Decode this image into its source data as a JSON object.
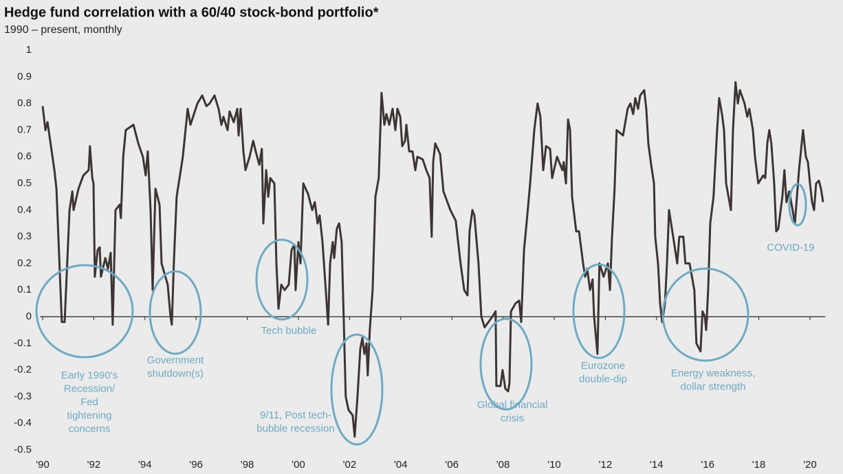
{
  "chart_data": {
    "type": "line",
    "title": "Hedge fund correlation with a 60/40 stock-bond portfolio*",
    "subtitle": "1990 – present, monthly",
    "color": "#3d3533",
    "annotation_color": "#6fa9c2",
    "xlim": [
      1989.9,
      2020.6
    ],
    "ylim": [
      -0.5,
      1
    ],
    "yticks": [
      1,
      0.9,
      0.8,
      0.7,
      0.6,
      0.5,
      0.4,
      0.3,
      0.2,
      0.1,
      0,
      -0.1,
      -0.2,
      -0.3,
      -0.4,
      -0.5
    ],
    "xticks": [
      {
        "value": 1990,
        "label": "'90"
      },
      {
        "value": 1992,
        "label": "'92"
      },
      {
        "value": 1994,
        "label": "'94"
      },
      {
        "value": 1996,
        "label": "'96"
      },
      {
        "value": 1998,
        "label": "'98"
      },
      {
        "value": 2000,
        "label": "'00"
      },
      {
        "value": 2002,
        "label": "'02"
      },
      {
        "value": 2004,
        "label": "'04"
      },
      {
        "value": 2006,
        "label": "'06"
      },
      {
        "value": 2008,
        "label": "'08"
      },
      {
        "value": 2010,
        "label": "'10"
      },
      {
        "value": 2012,
        "label": "'12"
      },
      {
        "value": 2014,
        "label": "'14"
      },
      {
        "value": 2016,
        "label": "'16"
      },
      {
        "value": 2018,
        "label": "'18"
      },
      {
        "value": 2020,
        "label": "'20"
      }
    ],
    "x": [
      1990.0,
      1990.11,
      1990.19,
      1990.46,
      1990.54,
      1990.75,
      1990.86,
      1991.05,
      1991.16,
      1991.21,
      1991.4,
      1991.59,
      1991.8,
      1991.85,
      1991.94,
      1991.99,
      1992.04,
      1992.15,
      1992.23,
      1992.28,
      1992.45,
      1992.55,
      1992.66,
      1992.74,
      1992.85,
      1993.01,
      1993.06,
      1993.15,
      1993.25,
      1993.55,
      1993.74,
      1993.92,
      1994.03,
      1994.11,
      1994.22,
      1994.3,
      1994.41,
      1994.57,
      1994.65,
      1994.89,
      1995.0,
      1995.05,
      1995.13,
      1995.24,
      1995.4,
      1995.48,
      1995.67,
      1995.78,
      1996.05,
      1996.24,
      1996.4,
      1996.53,
      1996.72,
      1996.88,
      1996.99,
      1997.07,
      1997.23,
      1997.31,
      1997.47,
      1997.61,
      1997.66,
      1997.74,
      1997.85,
      1997.93,
      1998.09,
      1998.23,
      1998.33,
      1998.47,
      1998.57,
      1998.63,
      1998.74,
      1998.82,
      1998.9,
      1999.06,
      1999.14,
      1999.22,
      1999.33,
      1999.46,
      1999.62,
      1999.73,
      1999.84,
      1999.89,
      2000.0,
      2000.08,
      2000.19,
      2000.38,
      2000.54,
      2000.64,
      2000.75,
      2000.83,
      2000.94,
      2001.07,
      2001.16,
      2001.24,
      2001.34,
      2001.4,
      2001.5,
      2001.59,
      2001.69,
      2001.77,
      2001.85,
      2001.96,
      2002.12,
      2002.2,
      2002.31,
      2002.42,
      2002.5,
      2002.58,
      2002.66,
      2002.71,
      2002.79,
      2002.9,
      2003.01,
      2003.14,
      2003.25,
      2003.36,
      2003.44,
      2003.55,
      2003.68,
      2003.79,
      2003.87,
      2003.98,
      2004.06,
      2004.17,
      2004.22,
      2004.33,
      2004.46,
      2004.57,
      2004.65,
      2004.86,
      2005.0,
      2005.13,
      2005.21,
      2005.27,
      2005.35,
      2005.54,
      2005.67,
      2005.94,
      2006.15,
      2006.34,
      2006.48,
      2006.61,
      2006.69,
      2006.8,
      2006.88,
      2007.04,
      2007.15,
      2007.28,
      2007.58,
      2007.71,
      2007.74,
      2007.9,
      2007.98,
      2008.09,
      2008.2,
      2008.25,
      2008.31,
      2008.49,
      2008.63,
      2008.71,
      2008.82,
      2008.92,
      2009.06,
      2009.22,
      2009.35,
      2009.46,
      2009.57,
      2009.68,
      2009.84,
      2009.92,
      2010.11,
      2010.32,
      2010.37,
      2010.46,
      2010.54,
      2010.62,
      2010.7,
      2010.86,
      2010.97,
      2011.13,
      2011.21,
      2011.29,
      2011.4,
      2011.5,
      2011.56,
      2011.69,
      2011.77,
      2011.93,
      2012.1,
      2012.18,
      2012.26,
      2012.36,
      2012.44,
      2012.69,
      2012.87,
      2012.98,
      2013.09,
      2013.17,
      2013.28,
      2013.36,
      2013.52,
      2013.6,
      2013.68,
      2013.79,
      2013.9,
      2013.95,
      2014.06,
      2014.14,
      2014.22,
      2014.33,
      2014.41,
      2014.49,
      2014.57,
      2014.65,
      2014.81,
      2014.89,
      2015.05,
      2015.13,
      2015.29,
      2015.48,
      2015.56,
      2015.72,
      2015.8,
      2015.89,
      2015.94,
      2016.02,
      2016.1,
      2016.23,
      2016.37,
      2016.45,
      2016.56,
      2016.64,
      2016.72,
      2016.91,
      2016.99,
      2017.09,
      2017.18,
      2017.26,
      2017.44,
      2017.55,
      2017.63,
      2017.77,
      2017.85,
      2017.98,
      2018.17,
      2018.25,
      2018.33,
      2018.41,
      2018.49,
      2018.6,
      2018.68,
      2018.76,
      2018.92,
      2019.0,
      2019.08,
      2019.19,
      2019.32,
      2019.41,
      2019.49,
      2019.57,
      2019.73,
      2019.84,
      2019.92,
      2020.0,
      2020.08,
      2020.16,
      2020.24,
      2020.35,
      2020.43,
      2020.51
    ],
    "values": [
      0.79,
      0.7,
      0.73,
      0.55,
      0.48,
      -0.02,
      -0.02,
      0.4,
      0.47,
      0.4,
      0.48,
      0.53,
      0.55,
      0.64,
      0.52,
      0.5,
      0.15,
      0.25,
      0.26,
      0.15,
      0.22,
      0.18,
      0.24,
      -0.03,
      0.4,
      0.42,
      0.37,
      0.6,
      0.7,
      0.72,
      0.65,
      0.6,
      0.53,
      0.62,
      0.4,
      0.1,
      0.48,
      0.42,
      0.2,
      0.12,
      0.0,
      -0.03,
      0.2,
      0.45,
      0.55,
      0.6,
      0.78,
      0.72,
      0.8,
      0.83,
      0.79,
      0.8,
      0.83,
      0.78,
      0.72,
      0.75,
      0.7,
      0.77,
      0.73,
      0.78,
      0.68,
      0.78,
      0.62,
      0.55,
      0.6,
      0.66,
      0.62,
      0.57,
      0.63,
      0.35,
      0.55,
      0.45,
      0.52,
      0.5,
      0.2,
      0.03,
      0.12,
      0.1,
      0.12,
      0.25,
      0.27,
      0.1,
      0.28,
      0.2,
      0.5,
      0.46,
      0.4,
      0.43,
      0.35,
      0.38,
      0.28,
      0.1,
      -0.03,
      0.2,
      0.28,
      0.22,
      0.33,
      0.35,
      0.28,
      0.0,
      -0.3,
      -0.35,
      -0.37,
      -0.45,
      -0.3,
      -0.12,
      -0.08,
      -0.14,
      -0.1,
      -0.22,
      -0.05,
      0.1,
      0.45,
      0.52,
      0.84,
      0.72,
      0.76,
      0.72,
      0.78,
      0.7,
      0.78,
      0.75,
      0.64,
      0.66,
      0.72,
      0.62,
      0.62,
      0.55,
      0.6,
      0.59,
      0.55,
      0.52,
      0.3,
      0.58,
      0.65,
      0.61,
      0.47,
      0.4,
      0.36,
      0.2,
      0.1,
      0.08,
      0.32,
      0.4,
      0.38,
      0.2,
      0.0,
      -0.04,
      0.0,
      0.02,
      -0.26,
      -0.26,
      -0.2,
      -0.27,
      -0.28,
      -0.25,
      0.02,
      0.05,
      0.06,
      -0.02,
      0.25,
      0.35,
      0.5,
      0.7,
      0.8,
      0.75,
      0.55,
      0.64,
      0.63,
      0.52,
      0.6,
      0.55,
      0.58,
      0.5,
      0.74,
      0.7,
      0.45,
      0.32,
      0.32,
      0.2,
      0.15,
      0.18,
      0.1,
      0.14,
      0.0,
      -0.14,
      0.2,
      0.15,
      0.2,
      0.1,
      0.3,
      0.48,
      0.7,
      0.68,
      0.78,
      0.8,
      0.76,
      0.82,
      0.78,
      0.83,
      0.85,
      0.78,
      0.65,
      0.57,
      0.5,
      0.3,
      0.2,
      0.05,
      -0.02,
      0.05,
      0.2,
      0.4,
      0.35,
      0.3,
      0.2,
      0.3,
      0.3,
      0.2,
      0.2,
      0.1,
      -0.1,
      -0.13,
      0.02,
      0.0,
      -0.05,
      0.1,
      0.35,
      0.45,
      0.7,
      0.82,
      0.76,
      0.7,
      0.5,
      0.4,
      0.7,
      0.88,
      0.8,
      0.85,
      0.8,
      0.75,
      0.78,
      0.7,
      0.6,
      0.5,
      0.53,
      0.52,
      0.65,
      0.7,
      0.65,
      0.5,
      0.32,
      0.33,
      0.45,
      0.55,
      0.43,
      0.47,
      0.4,
      0.35,
      0.45,
      0.55,
      0.7,
      0.6,
      0.58,
      0.5,
      0.43,
      0.4,
      0.5,
      0.51,
      0.48,
      0.43
    ],
    "annotations": [
      {
        "lines": [
          "Early 1990's",
          "Recession/",
          "Fed",
          "tightening",
          "concerns"
        ]
      },
      {
        "lines": [
          "Government",
          "shutdown(s)"
        ]
      },
      {
        "lines": [
          "Tech bubble"
        ]
      },
      {
        "lines": [
          "9/11, Post tech-",
          "bubble recession"
        ]
      },
      {
        "lines": [
          "Global financial",
          "crisis"
        ]
      },
      {
        "lines": [
          "Eurozone",
          "double-dip"
        ]
      },
      {
        "lines": [
          "Energy weakness,",
          "dollar strength"
        ]
      },
      {
        "lines": [
          "COVID-19"
        ]
      }
    ]
  }
}
